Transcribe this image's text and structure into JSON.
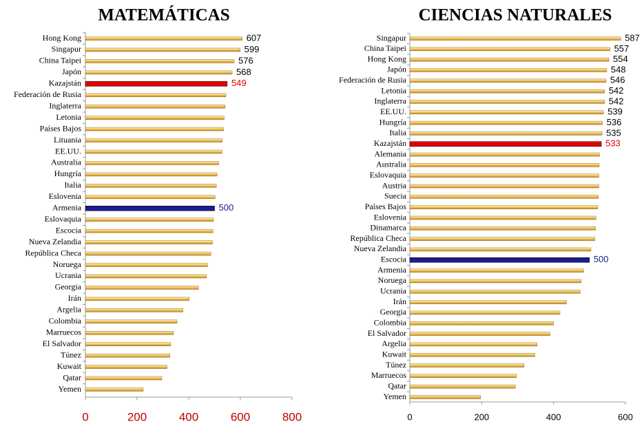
{
  "chart_data": [
    {
      "type": "bar",
      "orientation": "horizontal",
      "title": "MATEMÁTICAS",
      "categories": [
        "Hong Kong",
        "Singapur",
        "China Taipei",
        "Japón",
        "Kazajstán",
        "Federación de Rusia",
        "Inglaterra",
        "Letonia",
        "Países Bajos",
        "Lituania",
        "EE.UU.",
        "Australia",
        "Hungría",
        "Italia",
        "Eslovenia",
        "Armenia",
        "Eslovaquia",
        "Escocia",
        "Nueva Zelandia",
        "República Checa",
        "Noruega",
        "Ucrania",
        "Georgia",
        "Irán",
        "Argelia",
        "Colombia",
        "Marruecos",
        "El Salvador",
        "Túnez",
        "Kuwait",
        "Qatar",
        "Yemen"
      ],
      "values": [
        607,
        599,
        576,
        568,
        549,
        544,
        541,
        537,
        535,
        530,
        529,
        516,
        510,
        507,
        502,
        500,
        496,
        494,
        492,
        486,
        473,
        469,
        438,
        402,
        378,
        355,
        341,
        330,
        327,
        316,
        296,
        224
      ],
      "value_labels": [
        "607",
        "599",
        "576",
        "568",
        "549",
        null,
        null,
        null,
        null,
        null,
        null,
        null,
        null,
        null,
        null,
        "500",
        null,
        null,
        null,
        null,
        null,
        null,
        null,
        null,
        null,
        null,
        null,
        null,
        null,
        null,
        null,
        null
      ],
      "color": "#eec35a",
      "highlight_colors": [
        null,
        null,
        null,
        null,
        "#e00000",
        null,
        null,
        null,
        null,
        null,
        null,
        null,
        null,
        null,
        null,
        "#1c1c8c",
        null,
        null,
        null,
        null,
        null,
        null,
        null,
        null,
        null,
        null,
        null,
        null,
        null,
        null,
        null,
        null
      ],
      "xlim": [
        0,
        800
      ],
      "xticks": [
        0,
        200,
        400,
        600,
        800
      ],
      "tick_label_color": "#c00000"
    },
    {
      "type": "bar",
      "orientation": "horizontal",
      "title": "CIENCIAS NATURALES",
      "categories": [
        "Singapur",
        "China Taipei",
        "Hong Kong",
        "Japón",
        "Federación de Rusia",
        "Letonia",
        "Inglaterra",
        "EE.UU.",
        "Hungría",
        "Italia",
        "Kazajstán",
        "Alemania",
        "Australia",
        "Eslovaquia",
        "Austria",
        "Suecia",
        "Países Bajos",
        "Eslovenia",
        "Dinamarca",
        "República Checa",
        "Nueva Zelandia",
        "Escocia",
        "Armenia",
        "Noruega",
        "Ucrania",
        "Irán",
        "Georgia",
        "Colombia",
        "El Salvador",
        "Argelia",
        "Kuwait",
        "Túnez",
        "Marruecos",
        "Qatar",
        "Yemen"
      ],
      "values": [
        587,
        557,
        554,
        548,
        546,
        542,
        542,
        539,
        536,
        535,
        533,
        528,
        527,
        526,
        526,
        525,
        523,
        518,
        517,
        515,
        504,
        500,
        484,
        477,
        474,
        436,
        418,
        400,
        390,
        354,
        348,
        318,
        297,
        294,
        197
      ],
      "value_labels": [
        "587",
        "557",
        "554",
        "548",
        "546",
        "542",
        "542",
        "539",
        "536",
        "535",
        "533",
        null,
        null,
        null,
        null,
        null,
        null,
        null,
        null,
        null,
        null,
        "500",
        null,
        null,
        null,
        null,
        null,
        null,
        null,
        null,
        null,
        null,
        null,
        null,
        null
      ],
      "color": "#eec35a",
      "highlight_colors": [
        null,
        null,
        null,
        null,
        null,
        null,
        null,
        null,
        null,
        null,
        "#e00000",
        null,
        null,
        null,
        null,
        null,
        null,
        null,
        null,
        null,
        null,
        "#1c1c8c",
        null,
        null,
        null,
        null,
        null,
        null,
        null,
        null,
        null,
        null,
        null,
        null,
        null
      ],
      "xlim": [
        0,
        600
      ],
      "xticks": [
        0,
        200,
        400,
        600
      ],
      "tick_label_color": "#000000"
    }
  ]
}
